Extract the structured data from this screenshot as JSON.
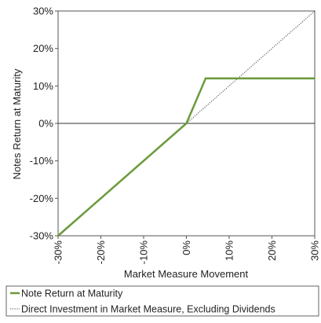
{
  "chart_data": {
    "type": "line",
    "xlabel": "Market Measure Movement",
    "ylabel": "Notes Return at Maturity",
    "xlim": [
      -30,
      30
    ],
    "ylim": [
      -30,
      30
    ],
    "x_ticks": [
      -30,
      -20,
      -10,
      0,
      10,
      20,
      30
    ],
    "y_ticks": [
      -30,
      -20,
      -10,
      0,
      10,
      20,
      30
    ],
    "x_tick_labels": [
      "-30%",
      "-20%",
      "-10%",
      "0%",
      "10%",
      "20%",
      "30%"
    ],
    "y_tick_labels": [
      "-30%",
      "-20%",
      "-10%",
      "0%",
      "10%",
      "20%",
      "30%"
    ],
    "grid": false,
    "legend_position": "bottom",
    "series": [
      {
        "name": "Note Return at Maturity",
        "style": "solid",
        "color": "#6a9a3a",
        "points": [
          [
            -30,
            -30
          ],
          [
            0,
            0
          ],
          [
            4.5,
            12
          ],
          [
            30,
            12
          ]
        ]
      },
      {
        "name": "Direct Investment in Market Measure, Excluding Dividends",
        "style": "dotted",
        "color": "#444444",
        "points": [
          [
            0,
            0
          ],
          [
            30,
            30
          ]
        ]
      }
    ],
    "zero_line": {
      "y": 0,
      "color": "#333333"
    }
  }
}
